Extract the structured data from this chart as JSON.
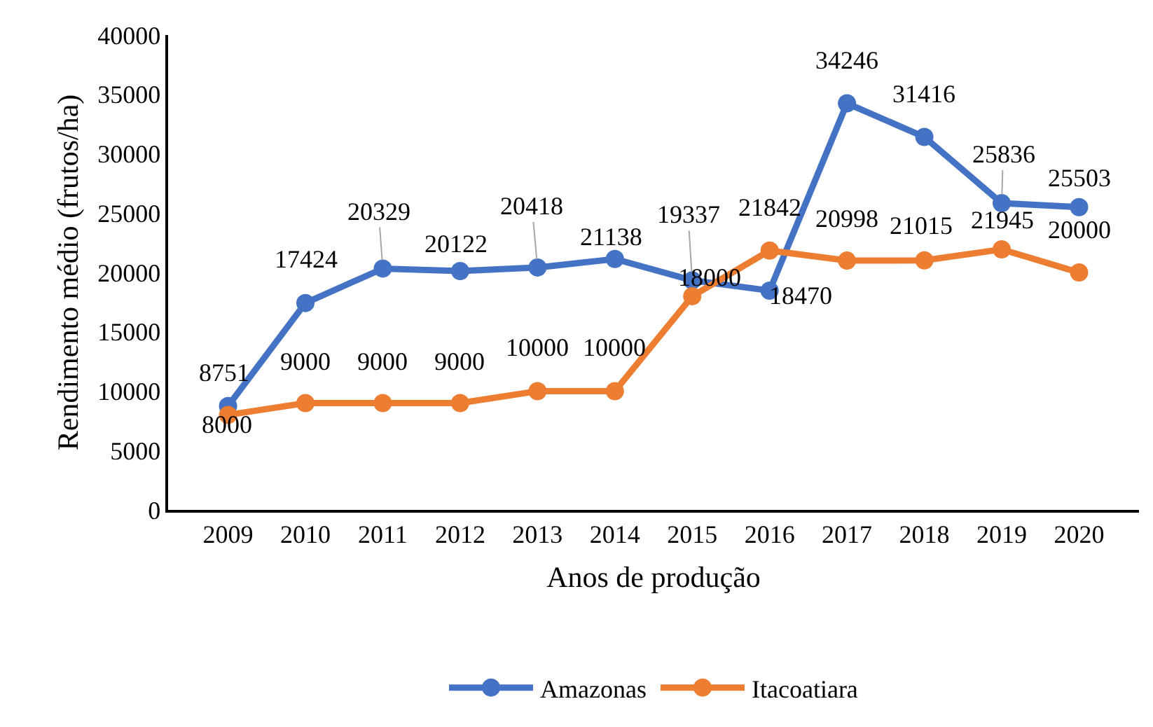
{
  "chart_data": {
    "type": "line",
    "xlabel": "Anos de produção",
    "ylabel": "Rendimento médio (frutos/ha)",
    "categories": [
      "2009",
      "2010",
      "2011",
      "2012",
      "2013",
      "2014",
      "2015",
      "2016",
      "2017",
      "2018",
      "2019",
      "2020"
    ],
    "series": [
      {
        "name": "Amazonas",
        "color": "#4472c4",
        "values": [
          8751,
          17424,
          20329,
          20122,
          20418,
          21138,
          19337,
          18470,
          34246,
          31416,
          25836,
          25503
        ]
      },
      {
        "name": "Itacoatiara",
        "color": "#ed7d31",
        "values": [
          8000,
          9000,
          9000,
          9000,
          10000,
          10000,
          18000,
          21842,
          20998,
          21015,
          21945,
          20000
        ]
      }
    ],
    "ylim": [
      0,
      40000
    ],
    "yticks": [
      0,
      5000,
      10000,
      15000,
      20000,
      25000,
      30000,
      35000,
      40000
    ],
    "data_labels": true,
    "legend": "bottom",
    "marker": "circle",
    "line_style": "solid"
  }
}
